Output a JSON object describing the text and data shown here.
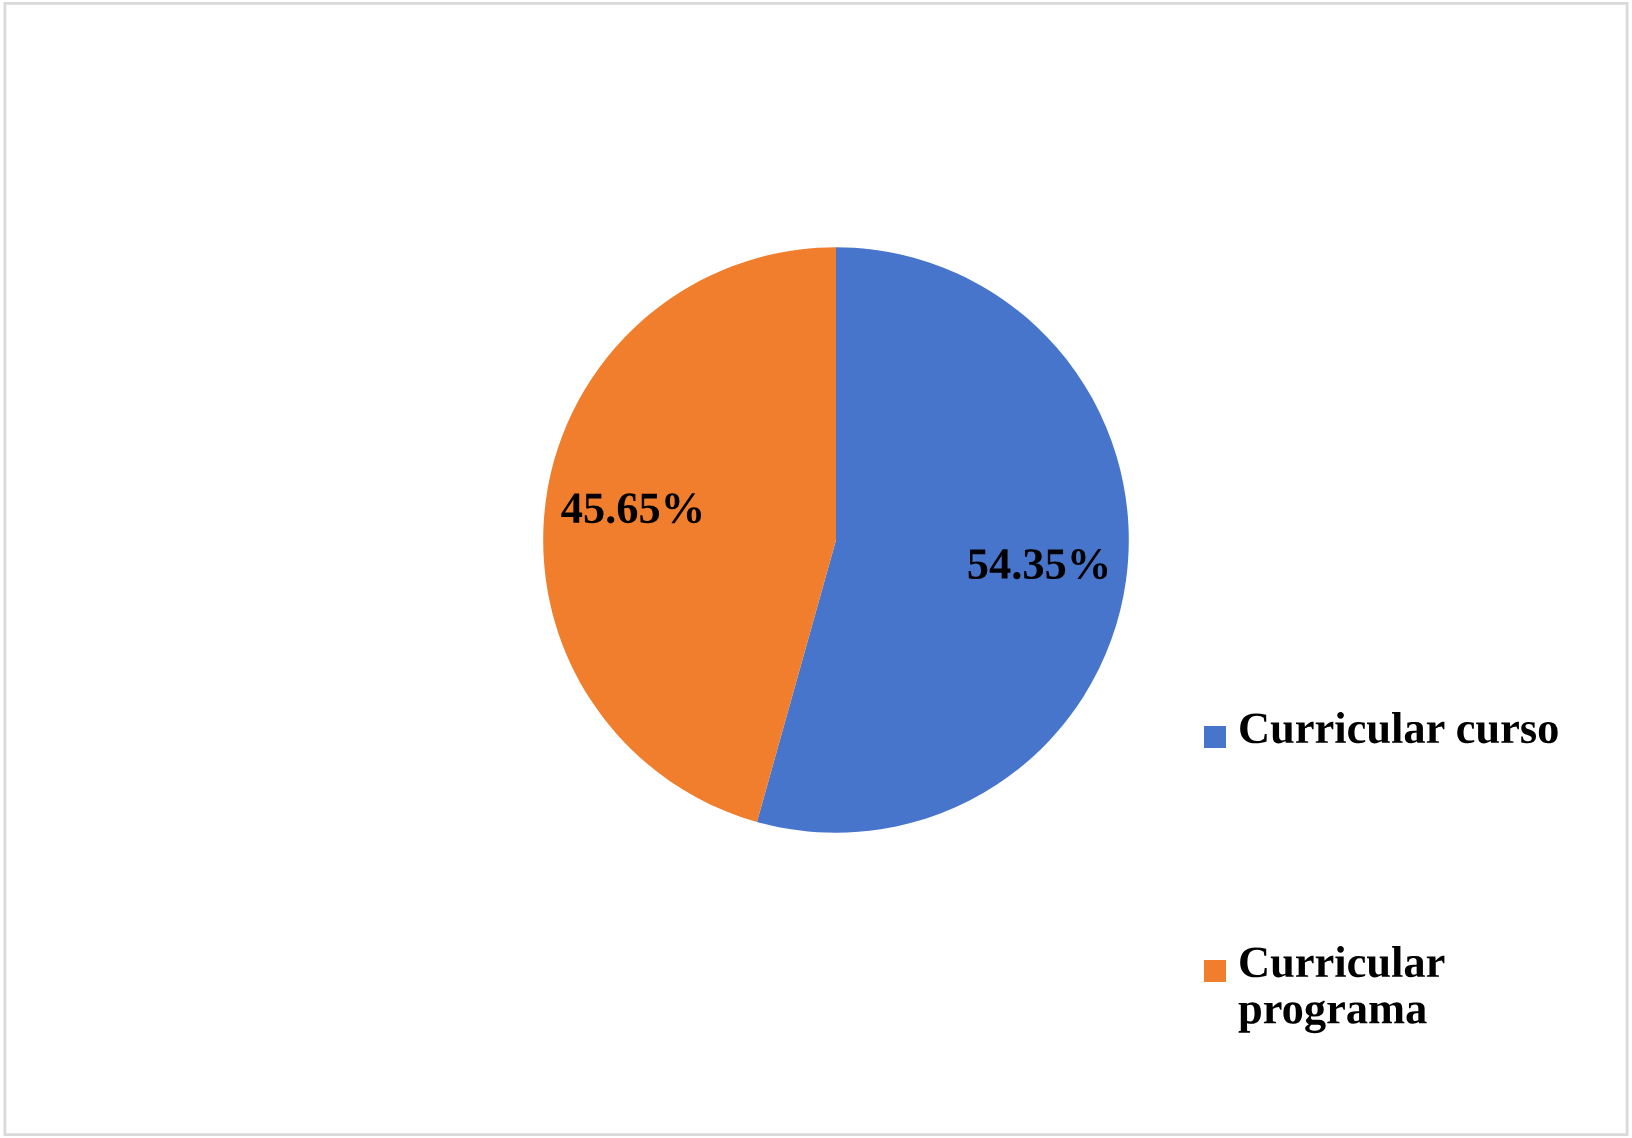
{
  "chart_data": {
    "type": "pie",
    "categories": [
      "Curricular curso",
      "Curricular programa"
    ],
    "values": [
      54.35,
      45.65
    ],
    "colors": [
      "#4775cb",
      "#f07e2c"
    ],
    "value_labels": [
      "54.35%",
      "45.65%"
    ],
    "legend": "right"
  }
}
